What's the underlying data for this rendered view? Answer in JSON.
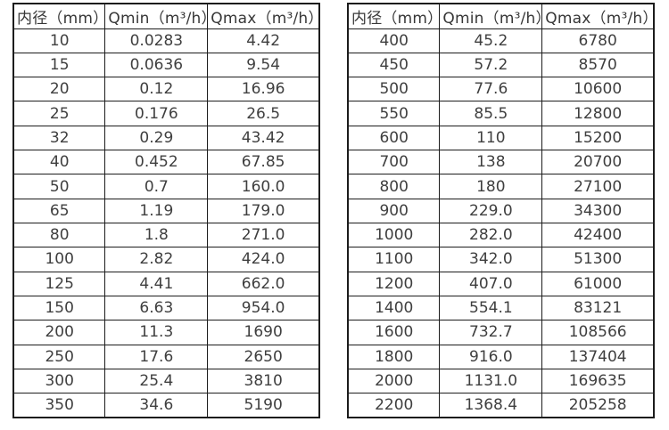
{
  "style": {
    "border_color": "#1c1c1c",
    "text_color": "#3f3f3f",
    "background": "#ffffff"
  },
  "tables": [
    {
      "name": "flow-rate-table-small-diameters",
      "headers": [
        "内径（mm）",
        "Qmin（m³/h）",
        "Qmax（m³/h）"
      ],
      "rows": [
        [
          "10",
          "0.0283",
          "4.42"
        ],
        [
          "15",
          "0.0636",
          "9.54"
        ],
        [
          "20",
          "0.12",
          "16.96"
        ],
        [
          "25",
          "0.176",
          "26.5"
        ],
        [
          "32",
          "0.29",
          "43.42"
        ],
        [
          "40",
          "0.452",
          "67.85"
        ],
        [
          "50",
          "0.7",
          "160.0"
        ],
        [
          "65",
          "1.19",
          "179.0"
        ],
        [
          "80",
          "1.8",
          "271.0"
        ],
        [
          "100",
          "2.82",
          "424.0"
        ],
        [
          "125",
          "4.41",
          "662.0"
        ],
        [
          "150",
          "6.63",
          "954.0"
        ],
        [
          "200",
          "11.3",
          "1690"
        ],
        [
          "250",
          "17.6",
          "2650"
        ],
        [
          "300",
          "25.4",
          "3810"
        ],
        [
          "350",
          "34.6",
          "5190"
        ]
      ]
    },
    {
      "name": "flow-rate-table-large-diameters",
      "headers": [
        "内径（mm）",
        "Qmin（m³/h）",
        "Qmax（m³/h）"
      ],
      "rows": [
        [
          "400",
          "45.2",
          "6780"
        ],
        [
          "450",
          "57.2",
          "8570"
        ],
        [
          "500",
          "77.6",
          "10600"
        ],
        [
          "550",
          "85.5",
          "12800"
        ],
        [
          "600",
          "110",
          "15200"
        ],
        [
          "700",
          "138",
          "20700"
        ],
        [
          "800",
          "180",
          "27100"
        ],
        [
          "900",
          "229.0",
          "34300"
        ],
        [
          "1000",
          "282.0",
          "42400"
        ],
        [
          "1100",
          "342.0",
          "51300"
        ],
        [
          "1200",
          "407.0",
          "61000"
        ],
        [
          "1400",
          "554.1",
          "83121"
        ],
        [
          "1600",
          "732.7",
          "108566"
        ],
        [
          "1800",
          "916.0",
          "137404"
        ],
        [
          "2000",
          "1131.0",
          "169635"
        ],
        [
          "2200",
          "1368.4",
          "205258"
        ]
      ]
    }
  ],
  "chart_data": {
    "type": "table",
    "title": "",
    "columns": [
      "内径（mm）",
      "Qmin（m³/h）",
      "Qmax（m³/h）"
    ],
    "tables": [
      {
        "diameters_mm": [
          10,
          15,
          20,
          25,
          32,
          40,
          50,
          65,
          80,
          100,
          125,
          150,
          200,
          250,
          300,
          350
        ],
        "qmin_m3h": [
          0.0283,
          0.0636,
          0.12,
          0.176,
          0.29,
          0.452,
          0.7,
          1.19,
          1.8,
          2.82,
          4.41,
          6.63,
          11.3,
          17.6,
          25.4,
          34.6
        ],
        "qmax_m3h": [
          4.42,
          9.54,
          16.96,
          26.5,
          43.42,
          67.85,
          160.0,
          179.0,
          271.0,
          424.0,
          662.0,
          954.0,
          1690,
          2650,
          3810,
          5190
        ]
      },
      {
        "diameters_mm": [
          400,
          450,
          500,
          550,
          600,
          700,
          800,
          900,
          1000,
          1100,
          1200,
          1400,
          1600,
          1800,
          2000,
          2200
        ],
        "qmin_m3h": [
          45.2,
          57.2,
          77.6,
          85.5,
          110,
          138,
          180,
          229.0,
          282.0,
          342.0,
          407.0,
          554.1,
          732.7,
          916.0,
          1131.0,
          1368.4
        ],
        "qmax_m3h": [
          6780,
          8570,
          10600,
          12800,
          15200,
          20700,
          27100,
          34300,
          42400,
          51300,
          61000,
          83121,
          108566,
          137404,
          169635,
          205258
        ]
      }
    ]
  }
}
